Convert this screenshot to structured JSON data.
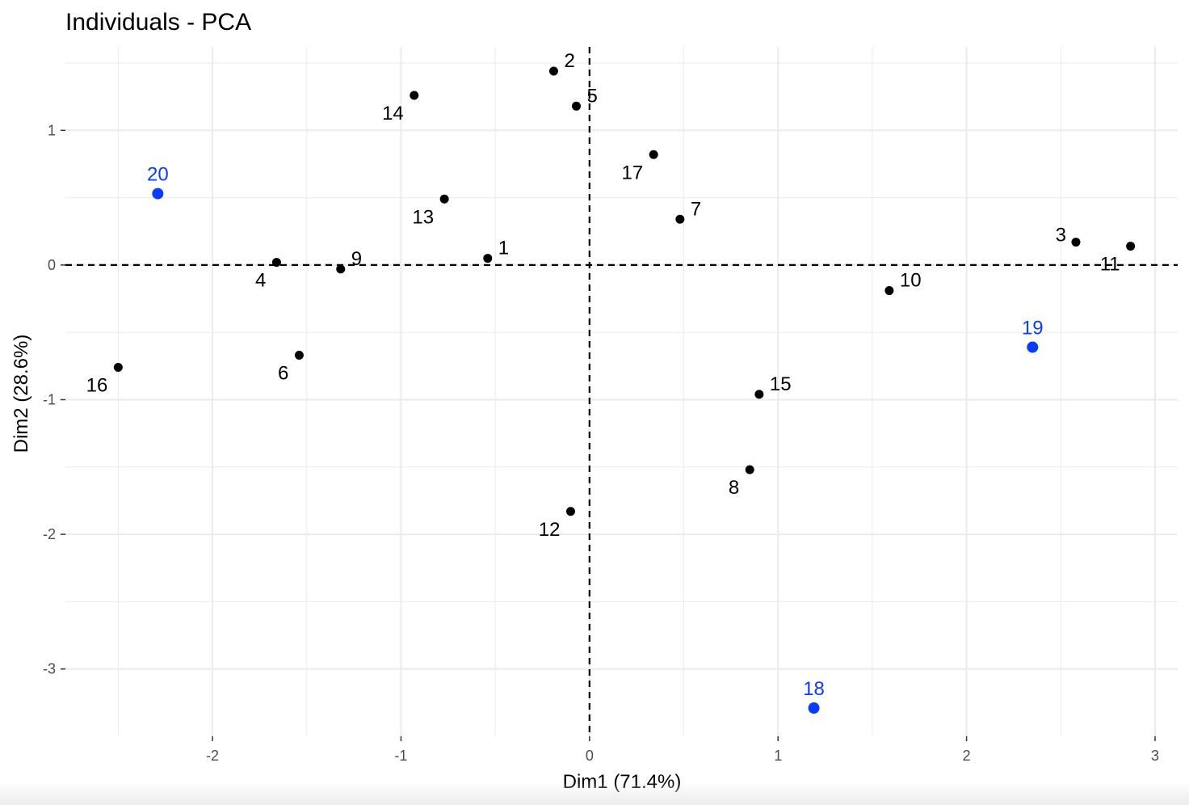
{
  "chart_data": {
    "type": "scatter",
    "title": "Individuals - PCA",
    "xlabel": "Dim1 (71.4%)",
    "ylabel": "Dim2 (28.6%)",
    "xlim": [
      -2.78,
      3.12
    ],
    "ylim": [
      -3.5,
      1.62
    ],
    "x_ticks": [
      -2,
      -1,
      0,
      1,
      2,
      3
    ],
    "x_tick_labels": [
      "-2",
      "-1",
      "0",
      "1",
      "2",
      "3"
    ],
    "y_ticks": [
      -3,
      -2,
      -1,
      0,
      1
    ],
    "y_tick_labels": [
      "-3",
      "-2",
      "-1",
      "0",
      "1"
    ],
    "grid": true,
    "reference_lines": {
      "x": 0,
      "y": 0,
      "style": "dashed"
    },
    "colors": {
      "default": "#000000",
      "highlight": "#0a3cff",
      "grid": "#ebebeb",
      "tick_text": "#4d4d4d"
    },
    "points": [
      {
        "label": "1",
        "x": -0.54,
        "y": 0.05,
        "highlight": false,
        "pos": "right"
      },
      {
        "label": "2",
        "x": -0.19,
        "y": 1.44,
        "highlight": false,
        "pos": "right"
      },
      {
        "label": "3",
        "x": 2.58,
        "y": 0.17,
        "highlight": false,
        "pos": "left"
      },
      {
        "label": "4",
        "x": -1.66,
        "y": 0.02,
        "highlight": false,
        "pos": "below-left"
      },
      {
        "label": "5",
        "x": -0.07,
        "y": 1.18,
        "highlight": false,
        "pos": "right"
      },
      {
        "label": "6",
        "x": -1.54,
        "y": -0.67,
        "highlight": false,
        "pos": "below-left"
      },
      {
        "label": "7",
        "x": 0.48,
        "y": 0.34,
        "highlight": false,
        "pos": "right"
      },
      {
        "label": "8",
        "x": 0.85,
        "y": -1.52,
        "highlight": false,
        "pos": "below-left"
      },
      {
        "label": "9",
        "x": -1.32,
        "y": -0.03,
        "highlight": false,
        "pos": "right"
      },
      {
        "label": "10",
        "x": 1.59,
        "y": -0.19,
        "highlight": false,
        "pos": "right"
      },
      {
        "label": "11",
        "x": 2.87,
        "y": 0.14,
        "highlight": false,
        "pos": "below-left"
      },
      {
        "label": "12",
        "x": -0.1,
        "y": -1.83,
        "highlight": false,
        "pos": "below-left"
      },
      {
        "label": "13",
        "x": -0.77,
        "y": 0.49,
        "highlight": false,
        "pos": "below-left"
      },
      {
        "label": "14",
        "x": -0.93,
        "y": 1.26,
        "highlight": false,
        "pos": "below-left"
      },
      {
        "label": "15",
        "x": 0.9,
        "y": -0.96,
        "highlight": false,
        "pos": "right"
      },
      {
        "label": "16",
        "x": -2.5,
        "y": -0.76,
        "highlight": false,
        "pos": "below-left"
      },
      {
        "label": "17",
        "x": 0.34,
        "y": 0.82,
        "highlight": false,
        "pos": "below-left"
      },
      {
        "label": "18",
        "x": 1.19,
        "y": -3.29,
        "highlight": true,
        "pos": "above"
      },
      {
        "label": "19",
        "x": 2.35,
        "y": -0.61,
        "highlight": true,
        "pos": "above"
      },
      {
        "label": "20",
        "x": -2.29,
        "y": 0.53,
        "highlight": true,
        "pos": "above"
      }
    ]
  }
}
